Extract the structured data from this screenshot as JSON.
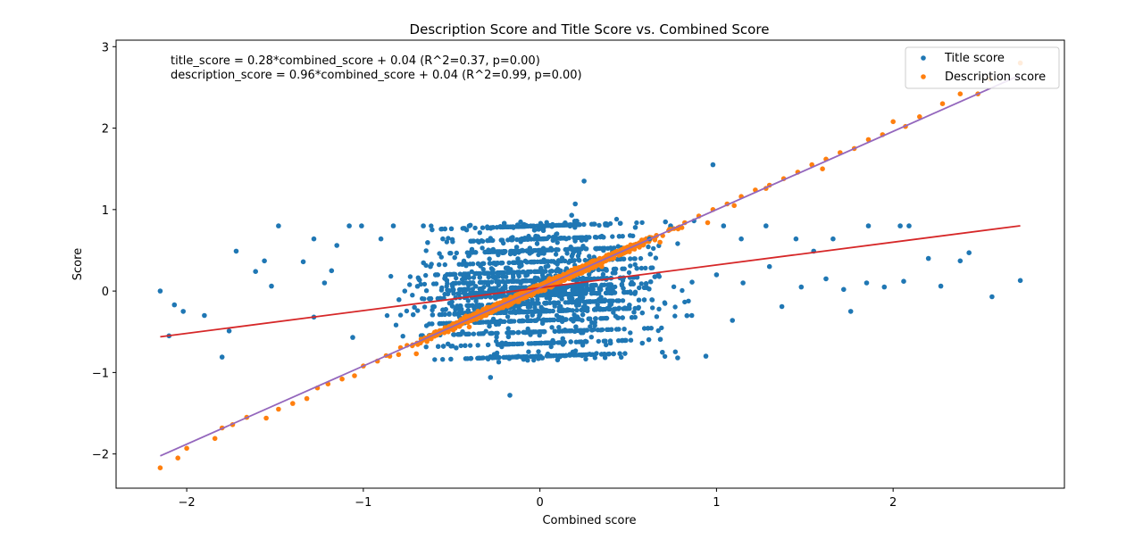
{
  "chart_data": {
    "type": "scatter",
    "title": "Description Score and Title Score vs. Combined Score",
    "xlabel": "Combined score",
    "ylabel": "Score",
    "xlim": [
      -2.4,
      2.97
    ],
    "ylim": [
      -2.42,
      3.08
    ],
    "xticks": [
      -2,
      -1,
      0,
      1,
      2
    ],
    "yticks": [
      -2,
      -1,
      0,
      1,
      2,
      3
    ],
    "xtick_labels": [
      "−2",
      "−1",
      "0",
      "1",
      "2"
    ],
    "ytick_labels": [
      "−2",
      "−1",
      "0",
      "1",
      "2",
      "3"
    ],
    "grid": false,
    "legend_position": "top-right",
    "annotations": [
      "title_score = 0.28*combined_score + 0.04  (R^2=0.37, p=0.00)",
      "description_score = 0.96*combined_score + 0.04  (R^2=0.99, p=0.00)"
    ],
    "series": [
      {
        "name": "Title score",
        "color": "#1f77b4",
        "marker": "circle",
        "fit": {
          "slope": 0.28,
          "intercept": 0.04,
          "x_range": [
            -2.15,
            2.72
          ],
          "color": "#d62728"
        },
        "points": [
          [
            -2.15,
            0.0
          ],
          [
            -2.07,
            -0.17
          ],
          [
            -2.02,
            -0.25
          ],
          [
            -1.72,
            0.49
          ],
          [
            -1.61,
            0.24
          ],
          [
            -1.56,
            0.37
          ],
          [
            -1.48,
            0.8
          ],
          [
            -1.34,
            0.36
          ],
          [
            -1.28,
            0.64
          ],
          [
            -1.15,
            0.56
          ],
          [
            -1.08,
            0.8
          ],
          [
            -1.01,
            0.8
          ],
          [
            -0.9,
            0.64
          ],
          [
            -0.83,
            0.8
          ],
          [
            -0.66,
            0.8
          ],
          [
            -0.62,
            0.3
          ],
          [
            -0.55,
            0.64
          ],
          [
            -0.4,
            0.8
          ],
          [
            -0.27,
            0.5
          ],
          [
            0.06,
            0.24
          ],
          [
            0.18,
            0.93
          ],
          [
            0.2,
            1.07
          ],
          [
            0.25,
            1.35
          ],
          [
            0.36,
            0.5
          ],
          [
            0.62,
            0.64
          ],
          [
            0.74,
            0.8
          ],
          [
            0.98,
            1.55
          ],
          [
            1.04,
            0.8
          ],
          [
            1.14,
            0.64
          ],
          [
            1.28,
            0.8
          ],
          [
            1.45,
            0.64
          ],
          [
            1.55,
            0.49
          ],
          [
            1.66,
            0.64
          ],
          [
            1.86,
            0.8
          ],
          [
            2.04,
            0.8
          ],
          [
            2.09,
            0.8
          ],
          [
            2.2,
            0.4
          ],
          [
            2.38,
            0.37
          ],
          [
            2.43,
            0.47
          ],
          [
            2.56,
            -0.07
          ],
          [
            2.72,
            0.13
          ],
          [
            1.76,
            -0.25
          ],
          [
            1.37,
            -0.19
          ],
          [
            1.09,
            -0.36
          ],
          [
            0.94,
            -0.8
          ],
          [
            0.78,
            -0.82
          ],
          [
            0.58,
            -0.64
          ],
          [
            0.4,
            -0.64
          ],
          [
            -0.28,
            -1.06
          ],
          [
            -0.17,
            -1.28
          ],
          [
            -1.06,
            -0.57
          ],
          [
            -1.28,
            -0.32
          ],
          [
            -1.76,
            -0.49
          ],
          [
            -1.8,
            -0.81
          ],
          [
            -2.1,
            -0.55
          ],
          [
            -1.9,
            -0.3
          ],
          [
            -1.18,
            0.25
          ],
          [
            -1.22,
            0.1
          ],
          [
            -1.52,
            0.06
          ],
          [
            0.86,
            -0.3
          ],
          [
            1.0,
            0.2
          ],
          [
            1.15,
            0.1
          ],
          [
            1.3,
            0.3
          ],
          [
            1.48,
            0.05
          ],
          [
            1.62,
            0.15
          ],
          [
            1.72,
            0.02
          ],
          [
            1.85,
            0.1
          ],
          [
            1.95,
            0.05
          ],
          [
            2.06,
            0.12
          ],
          [
            2.27,
            0.06
          ]
        ]
      },
      {
        "name": "Description score",
        "color": "#ff7f0e",
        "marker": "circle",
        "fit": {
          "slope": 0.96,
          "intercept": 0.04,
          "x_range": [
            -2.15,
            2.72
          ],
          "color": "#9467bd"
        },
        "points": [
          [
            -2.15,
            -2.17
          ],
          [
            -2.05,
            -2.05
          ],
          [
            -2.0,
            -1.93
          ],
          [
            -1.84,
            -1.81
          ],
          [
            -1.8,
            -1.68
          ],
          [
            -1.74,
            -1.64
          ],
          [
            -1.66,
            -1.55
          ],
          [
            -1.55,
            -1.56
          ],
          [
            -1.48,
            -1.45
          ],
          [
            -1.4,
            -1.38
          ],
          [
            -1.32,
            -1.32
          ],
          [
            -1.26,
            -1.19
          ],
          [
            -1.2,
            -1.14
          ],
          [
            -1.12,
            -1.08
          ],
          [
            -1.05,
            -1.04
          ],
          [
            -1.0,
            -0.92
          ],
          [
            -0.92,
            -0.86
          ],
          [
            -0.85,
            -0.8
          ],
          [
            -0.8,
            -0.78
          ],
          [
            -0.72,
            -0.66
          ],
          [
            -0.64,
            -0.62
          ],
          [
            -0.58,
            -0.53
          ],
          [
            -0.5,
            -0.44
          ],
          [
            -0.42,
            -0.37
          ],
          [
            -0.35,
            -0.3
          ],
          [
            -0.28,
            -0.22
          ],
          [
            -0.2,
            -0.15
          ],
          [
            -0.12,
            -0.07
          ],
          [
            -0.05,
            0.0
          ],
          [
            0.03,
            0.06
          ],
          [
            0.1,
            0.13
          ],
          [
            0.18,
            0.2
          ],
          [
            0.26,
            0.28
          ],
          [
            0.34,
            0.36
          ],
          [
            0.42,
            0.45
          ],
          [
            0.5,
            0.53
          ],
          [
            0.58,
            0.6
          ],
          [
            0.66,
            0.68
          ],
          [
            0.74,
            0.76
          ],
          [
            0.82,
            0.84
          ],
          [
            0.9,
            0.92
          ],
          [
            0.98,
            1.0
          ],
          [
            1.06,
            1.07
          ],
          [
            1.14,
            1.16
          ],
          [
            1.22,
            1.24
          ],
          [
            1.3,
            1.3
          ],
          [
            1.38,
            1.38
          ],
          [
            1.46,
            1.46
          ],
          [
            1.54,
            1.55
          ],
          [
            1.62,
            1.62
          ],
          [
            1.7,
            1.7
          ],
          [
            1.78,
            1.75
          ],
          [
            1.86,
            1.86
          ],
          [
            1.94,
            1.92
          ],
          [
            2.0,
            2.08
          ],
          [
            2.07,
            2.02
          ],
          [
            2.15,
            2.14
          ],
          [
            2.28,
            2.3
          ],
          [
            2.38,
            2.42
          ],
          [
            2.48,
            2.42
          ],
          [
            2.55,
            2.6
          ],
          [
            2.72,
            2.8
          ],
          [
            -0.7,
            -0.77
          ],
          [
            -0.4,
            -0.44
          ],
          [
            0.35,
            0.3
          ],
          [
            0.68,
            0.6
          ],
          [
            0.95,
            0.84
          ],
          [
            1.1,
            1.05
          ],
          [
            1.6,
            1.5
          ],
          [
            1.28,
            1.26
          ]
        ]
      }
    ]
  }
}
